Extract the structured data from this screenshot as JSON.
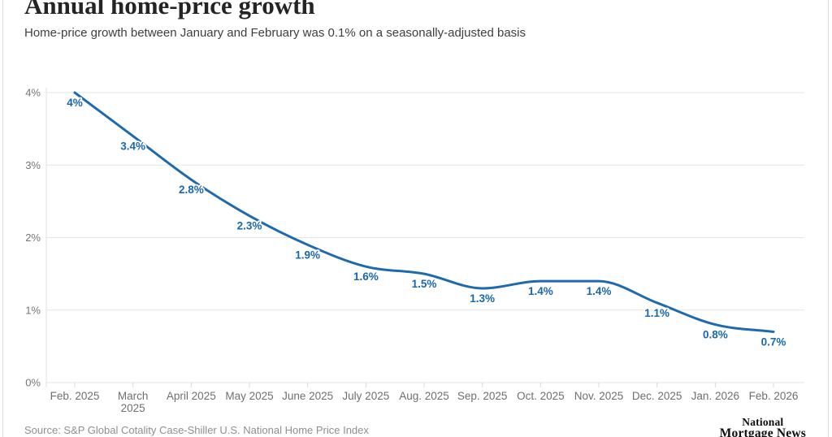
{
  "header": {
    "title": "Annual home-price growth",
    "subtitle": "Home-price growth between January and February was 0.1% on a seasonally-adjusted basis"
  },
  "chart_data": {
    "type": "line",
    "title": "Annual home-price growth",
    "categories": [
      "Feb. 2025",
      "March 2025",
      "April 2025",
      "May 2025",
      "June 2025",
      "July 2025",
      "Aug. 2025",
      "Sep. 2025",
      "Oct. 2025",
      "Nov. 2025",
      "Dec. 2025",
      "Jan. 2026",
      "Feb. 2026"
    ],
    "wrapped_categories": [
      [
        "Feb. 2025"
      ],
      [
        "March",
        "2025"
      ],
      [
        "April 2025"
      ],
      [
        "May 2025"
      ],
      [
        "June 2025"
      ],
      [
        "July 2025"
      ],
      [
        "Aug. 2025"
      ],
      [
        "Sep. 2025"
      ],
      [
        "Oct. 2025"
      ],
      [
        "Nov. 2025"
      ],
      [
        "Dec. 2025"
      ],
      [
        "Jan. 2026"
      ],
      [
        "Feb. 2026"
      ]
    ],
    "values": [
      4.0,
      3.4,
      2.8,
      2.3,
      1.9,
      1.6,
      1.5,
      1.3,
      1.4,
      1.4,
      1.1,
      0.8,
      0.7
    ],
    "point_labels": [
      "4%",
      "3.4%",
      "2.8%",
      "2.3%",
      "1.9%",
      "1.6%",
      "1.5%",
      "1.3%",
      "1.4%",
      "1.4%",
      "1.1%",
      "0.8%",
      "0.7%"
    ],
    "y_tick_labels": [
      "0%",
      "1%",
      "2%",
      "3%",
      "4%"
    ],
    "y_tick_values": [
      0,
      1,
      2,
      3,
      4
    ],
    "ylim": [
      0,
      4
    ],
    "grid": true,
    "legend": "none",
    "xlabel": "",
    "ylabel": "",
    "colors": {
      "line": "#1f6aad",
      "point_label": "#1a67ac",
      "gridline": "#e5e5e5",
      "axis_line": "#e2e2e2",
      "tick": "#d9d9d9",
      "y_tick_text": "#757575",
      "x_tick_text": "#6f6f6f"
    }
  },
  "footer": {
    "source": "Source: S&P Global Cotality Case-Shiller U.S. National Home Price Index",
    "logo_line1": "National",
    "logo_line2": "Mortgage News"
  }
}
